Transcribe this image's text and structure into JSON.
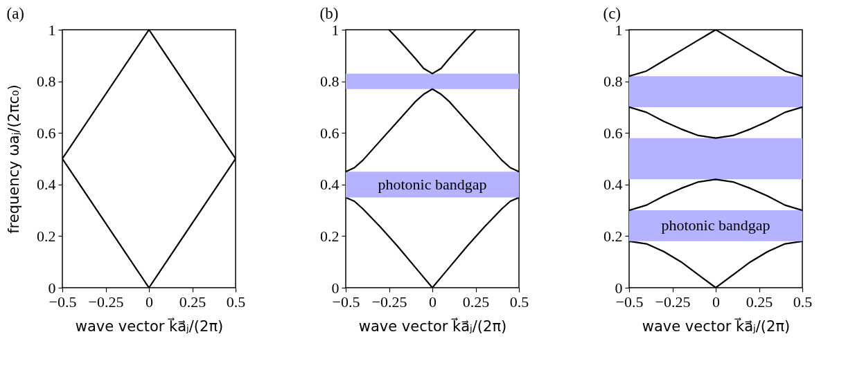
{
  "chart_data": [
    {
      "type": "line",
      "title": "(a)",
      "xlabel": "wave vector k⃗a⃗ⱼ/(2π)",
      "ylabel": "frequency ωaⱼ/(2πc₀)",
      "xlim": [
        -0.5,
        0.5
      ],
      "ylim": [
        0,
        1
      ],
      "xticks": [
        -0.5,
        -0.25,
        0,
        0.25,
        0.5
      ],
      "yticks": [
        0,
        0.2,
        0.4,
        0.6,
        0.8,
        1
      ],
      "series": [
        {
          "color": "#000000",
          "x": [
            -0.5,
            0,
            0.5
          ],
          "values": [
            0.5,
            0,
            0.5
          ]
        },
        {
          "color": "#000000",
          "x": [
            -0.5,
            0,
            0.5
          ],
          "values": [
            0.5,
            1,
            0.5
          ]
        }
      ]
    },
    {
      "type": "line",
      "title": "(b)",
      "xlabel": "wave vector k⃗a⃗ⱼ/(2π)",
      "xlim": [
        -0.5,
        0.5
      ],
      "ylim": [
        0,
        1
      ],
      "xticks": [
        -0.5,
        -0.25,
        0,
        0.25,
        0.5
      ],
      "yticks": [
        0,
        0.2,
        0.4,
        0.6,
        0.8,
        1
      ],
      "bands": [
        {
          "axis": "y",
          "from": 0.35,
          "to": 0.45,
          "label": "photonic bandgap",
          "color": "#b3b3ff"
        },
        {
          "axis": "y",
          "from": 0.77,
          "to": 0.83,
          "color": "#b3b3ff"
        }
      ],
      "series": [
        {
          "color": "#000000",
          "x": [
            -0.5,
            -0.45,
            -0.4,
            -0.3,
            -0.2,
            -0.1,
            0,
            0.1,
            0.2,
            0.3,
            0.4,
            0.45,
            0.5
          ],
          "values": [
            0.35,
            0.335,
            0.305,
            0.235,
            0.16,
            0.08,
            0,
            0.08,
            0.16,
            0.235,
            0.305,
            0.335,
            0.35
          ]
        },
        {
          "color": "#000000",
          "x": [
            -0.5,
            -0.45,
            -0.4,
            -0.3,
            -0.2,
            -0.1,
            -0.05,
            0,
            0.05,
            0.1,
            0.2,
            0.3,
            0.4,
            0.45,
            0.5
          ],
          "values": [
            0.45,
            0.465,
            0.495,
            0.57,
            0.645,
            0.72,
            0.75,
            0.77,
            0.75,
            0.72,
            0.645,
            0.57,
            0.495,
            0.465,
            0.45
          ]
        },
        {
          "color": "#000000",
          "x": [
            -0.25,
            -0.2,
            -0.1,
            -0.05,
            0,
            0.05,
            0.1,
            0.2,
            0.25
          ],
          "values": [
            1,
            0.965,
            0.89,
            0.85,
            0.83,
            0.85,
            0.89,
            0.965,
            1
          ]
        }
      ]
    },
    {
      "type": "line",
      "title": "(c)",
      "xlabel": "wave vector k⃗a⃗ⱼ/(2π)",
      "xlim": [
        -0.5,
        0.5
      ],
      "ylim": [
        0,
        1
      ],
      "xticks": [
        -0.5,
        -0.25,
        0,
        0.25,
        0.5
      ],
      "yticks": [
        0,
        0.2,
        0.4,
        0.6,
        0.8,
        1
      ],
      "bands": [
        {
          "axis": "y",
          "from": 0.18,
          "to": 0.3,
          "label": "photonic bandgap",
          "color": "#b3b3ff"
        },
        {
          "axis": "y",
          "from": 0.42,
          "to": 0.58,
          "color": "#b3b3ff"
        },
        {
          "axis": "y",
          "from": 0.7,
          "to": 0.82,
          "color": "#b3b3ff"
        }
      ],
      "series": [
        {
          "color": "#000000",
          "x": [
            -0.5,
            -0.4,
            -0.3,
            -0.2,
            -0.1,
            0,
            0.1,
            0.2,
            0.3,
            0.4,
            0.5
          ],
          "values": [
            0.18,
            0.17,
            0.14,
            0.1,
            0.05,
            0,
            0.05,
            0.1,
            0.14,
            0.17,
            0.18
          ]
        },
        {
          "color": "#000000",
          "x": [
            -0.5,
            -0.4,
            -0.3,
            -0.2,
            -0.1,
            0,
            0.1,
            0.2,
            0.3,
            0.4,
            0.5
          ],
          "values": [
            0.3,
            0.32,
            0.355,
            0.385,
            0.41,
            0.42,
            0.41,
            0.385,
            0.355,
            0.32,
            0.3
          ]
        },
        {
          "color": "#000000",
          "x": [
            -0.5,
            -0.4,
            -0.3,
            -0.2,
            -0.1,
            0,
            0.1,
            0.2,
            0.3,
            0.4,
            0.5
          ],
          "values": [
            0.7,
            0.68,
            0.645,
            0.615,
            0.59,
            0.58,
            0.59,
            0.615,
            0.645,
            0.68,
            0.7
          ]
        },
        {
          "color": "#000000",
          "x": [
            -0.5,
            -0.4,
            -0.3,
            -0.2,
            -0.1,
            0,
            0.1,
            0.2,
            0.3,
            0.4,
            0.5
          ],
          "values": [
            0.82,
            0.84,
            0.88,
            0.92,
            0.96,
            1,
            0.96,
            0.92,
            0.88,
            0.84,
            0.82
          ]
        }
      ]
    }
  ]
}
